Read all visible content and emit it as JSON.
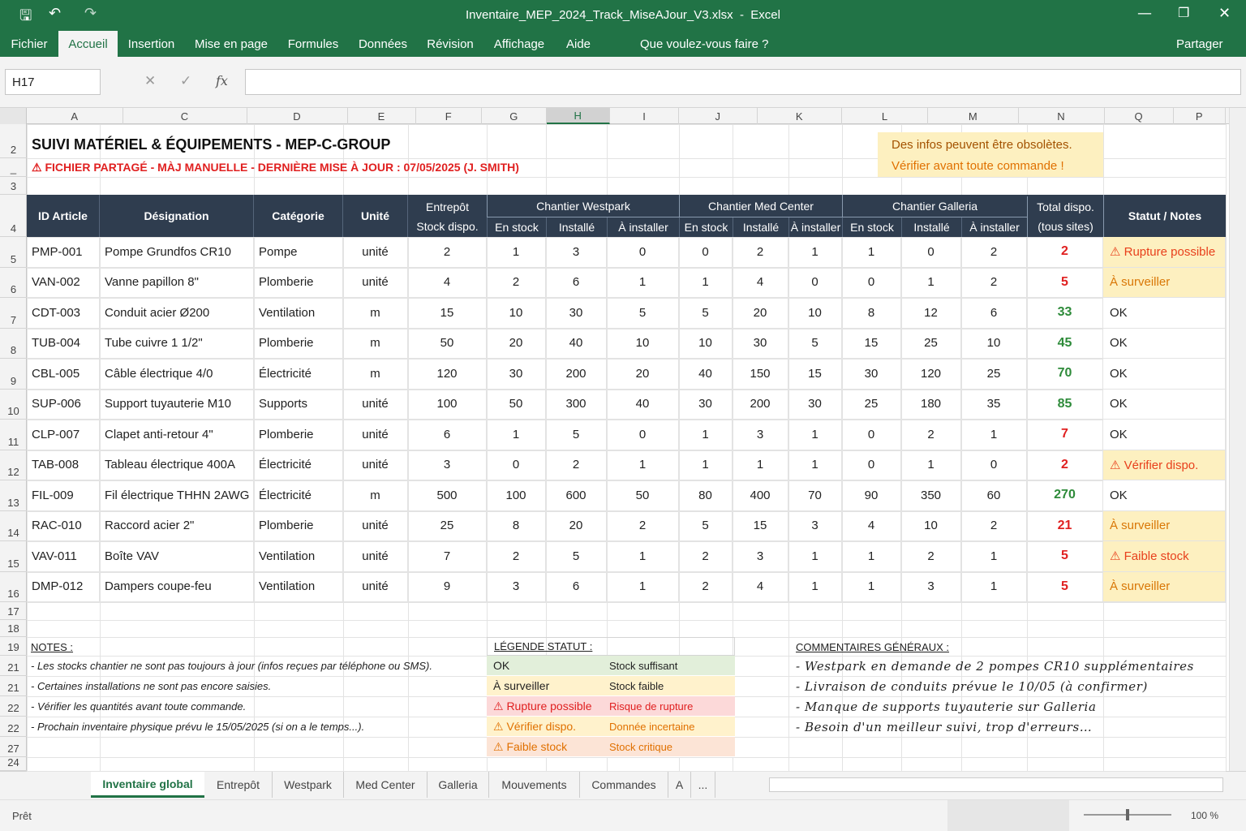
{
  "window": {
    "title": "Inventaire_MEP_2024_Track_MiseAJour_V3.xlsx  -  Excel",
    "menu": [
      "Fichier",
      "Accueil",
      "Insertion",
      "Mise en page",
      "Formules",
      "Données",
      "Révision",
      "Affichage",
      "Aide"
    ],
    "search": "Que voulez-vous faire ?",
    "share": "Partager"
  },
  "formula_bar": {
    "name_box": "H17"
  },
  "column_letters": [
    "A",
    "C",
    "D",
    "E",
    "F",
    "G",
    "H",
    "I",
    "J",
    "K",
    "L",
    "M",
    "N",
    "Q",
    "P"
  ],
  "row_numbers": [
    "2",
    "_",
    "3",
    "4",
    "5",
    "6",
    "7",
    "8",
    "9",
    "10",
    "11",
    "12",
    "13",
    "14",
    "15",
    "16",
    "17",
    "18",
    "19",
    "21",
    "21",
    "22",
    "22",
    "27",
    "24"
  ],
  "sheet": {
    "title": "SUIVI MATÉRIEL & ÉQUIPEMENTS - MEP-C-GROUP",
    "warning": "⚠ FICHIER PARTAGÉ - MÀJ MANUELLE - DERNIÈRE MISE À JOUR : 07/05/2025 (J. SMITH)",
    "notice": [
      "Des infos peuvent être obsolètes.",
      "Vérifier avant toute commande !"
    ],
    "header": {
      "id": "ID Article",
      "designation": "Désignation",
      "categorie": "Catégorie",
      "unite": "Unité",
      "entrepot": [
        "Entrepôt",
        "Stock dispo."
      ],
      "groups": [
        {
          "name": "Chantier Westpark",
          "subs": [
            "En stock",
            "Installé",
            "À installer"
          ]
        },
        {
          "name": "Chantier Med Center",
          "subs": [
            "En stock",
            "Installé",
            "À installer"
          ]
        },
        {
          "name": "Chantier Galleria",
          "subs": [
            "En stock",
            "Installé",
            "À installer"
          ]
        }
      ],
      "total": [
        "Total dispo.",
        "(tous sites)"
      ],
      "statut": "Statut / Notes"
    },
    "rows": [
      {
        "cells": [
          "PMP-001",
          "Pompe Grundfos CR10",
          "Pompe",
          "unité",
          2,
          1,
          3,
          0,
          0,
          2,
          1,
          1,
          0,
          2,
          2,
          "⚠ Rupture possible"
        ],
        "total_color": "#e02020",
        "status_color": "#e8401c",
        "status_fill": "#fdf0c0"
      },
      {
        "cells": [
          "VAN-002",
          "Vanne papillon 8\"",
          "Plomberie",
          "unité",
          4,
          2,
          6,
          1,
          1,
          4,
          0,
          0,
          1,
          2,
          5,
          "À surveiller"
        ],
        "total_color": "#e02020",
        "status_color": "#d97706",
        "status_fill": "#fdf0c0"
      },
      {
        "cells": [
          "CDT-003",
          "Conduit acier Ø200",
          "Ventilation",
          "m",
          15,
          10,
          30,
          5,
          5,
          20,
          10,
          8,
          12,
          6,
          33,
          "OK"
        ],
        "total_color": "#2e8b3a",
        "status_color": "#222222",
        "status_fill": "#ffffff"
      },
      {
        "cells": [
          "TUB-004",
          "Tube cuivre 1 1/2\"",
          "Plomberie",
          "m",
          50,
          20,
          40,
          10,
          10,
          30,
          5,
          15,
          25,
          10,
          45,
          "OK"
        ],
        "total_color": "#2e8b3a",
        "status_color": "#222222",
        "status_fill": "#ffffff"
      },
      {
        "cells": [
          "CBL-005",
          "Câble électrique 4/0",
          "Électricité",
          "m",
          120,
          30,
          200,
          20,
          40,
          150,
          15,
          30,
          120,
          25,
          70,
          "OK"
        ],
        "total_color": "#2e8b3a",
        "status_color": "#222222",
        "status_fill": "#ffffff"
      },
      {
        "cells": [
          "SUP-006",
          "Support tuyauterie M10",
          "Supports",
          "unité",
          100,
          50,
          300,
          40,
          30,
          200,
          30,
          25,
          180,
          35,
          85,
          "OK"
        ],
        "total_color": "#2e8b3a",
        "status_color": "#222222",
        "status_fill": "#ffffff"
      },
      {
        "cells": [
          "CLP-007",
          "Clapet anti-retour 4\"",
          "Plomberie",
          "unité",
          6,
          1,
          5,
          0,
          1,
          3,
          1,
          0,
          2,
          1,
          7,
          "OK"
        ],
        "total_color": "#e02020",
        "status_color": "#222222",
        "status_fill": "#ffffff"
      },
      {
        "cells": [
          "TAB-008",
          "Tableau électrique 400A",
          "Électricité",
          "unité",
          3,
          0,
          2,
          1,
          1,
          1,
          1,
          0,
          1,
          0,
          2,
          "⚠ Vérifier dispo."
        ],
        "total_color": "#e02020",
        "status_color": "#e8401c",
        "status_fill": "#fdf0c0"
      },
      {
        "cells": [
          "FIL-009",
          "Fil électrique THHN 2AWG",
          "Électricité",
          "m",
          500,
          100,
          600,
          50,
          80,
          400,
          70,
          90,
          350,
          60,
          270,
          "OK"
        ],
        "total_color": "#2e8b3a",
        "status_color": "#222222",
        "status_fill": "#ffffff"
      },
      {
        "cells": [
          "RAC-010",
          "Raccord acier 2\"",
          "Plomberie",
          "unité",
          25,
          8,
          20,
          2,
          5,
          15,
          3,
          4,
          10,
          2,
          21,
          "À surveiller"
        ],
        "total_color": "#e02020",
        "status_color": "#d97706",
        "status_fill": "#fdf0c0"
      },
      {
        "cells": [
          "VAV-011",
          "Boîte VAV",
          "Ventilation",
          "unité",
          7,
          2,
          5,
          1,
          2,
          3,
          1,
          1,
          2,
          1,
          5,
          "⚠ Faible stock"
        ],
        "total_color": "#e02020",
        "status_color": "#e8401c",
        "status_fill": "#fdf0c0"
      },
      {
        "cells": [
          "DMP-012",
          "Dampers coupe-feu",
          "Ventilation",
          "unité",
          9,
          3,
          6,
          1,
          2,
          4,
          1,
          1,
          3,
          1,
          5,
          "À surveiller"
        ],
        "total_color": "#e02020",
        "status_color": "#d97706",
        "status_fill": "#fdf0c0"
      }
    ],
    "notes": {
      "title": "NOTES :",
      "items": [
        "- Les stocks chantier ne sont pas toujours à jour (infos reçues par téléphone ou SMS).",
        "- Certaines installations ne sont pas encore saisies.",
        "- Vérifier les quantités avant toute commande.",
        "- Prochain inventaire physique prévu le 15/05/2025 (si on a le temps...)."
      ]
    },
    "legend": {
      "title": "LÉGENDE STATUT :",
      "items": [
        {
          "status": "OK",
          "meaning": "Stock suffisant",
          "fill": "#e2efda",
          "color": "#222222"
        },
        {
          "status": "À surveiller",
          "meaning": "Stock faible",
          "fill": "#fff2cc",
          "color": "#222222"
        },
        {
          "status": "⚠ Rupture possible",
          "meaning": "Risque de rupture",
          "fill": "#fcd9d9",
          "color": "#e02020"
        },
        {
          "status": "⚠ Vérifier dispo.",
          "meaning": "Donnée incertaine",
          "fill": "#fff2cc",
          "color": "#e07000"
        },
        {
          "status": "⚠ Faible stock",
          "meaning": "Stock critique",
          "fill": "#fce4d6",
          "color": "#e07000"
        }
      ]
    },
    "comments": {
      "title": "COMMENTAIRES GÉNÉRAUX :",
      "items": [
        "- Westpark en demande de 2 pompes CR10 supplémentaires",
        "- Livraison de conduits prévue le 10/05 (à confirmer)",
        "- Manque de supports tuyauterie sur Galleria",
        "- Besoin d'un meilleur suivi, trop d'erreurs…"
      ]
    }
  },
  "tabs": [
    "Inventaire global",
    "Entrepôt",
    "Westpark",
    "Med Center",
    "Galleria",
    "Mouvements",
    "Commandes",
    "A",
    "..."
  ],
  "status_bar": {
    "state": "Prêt",
    "zoom": "100 %"
  }
}
